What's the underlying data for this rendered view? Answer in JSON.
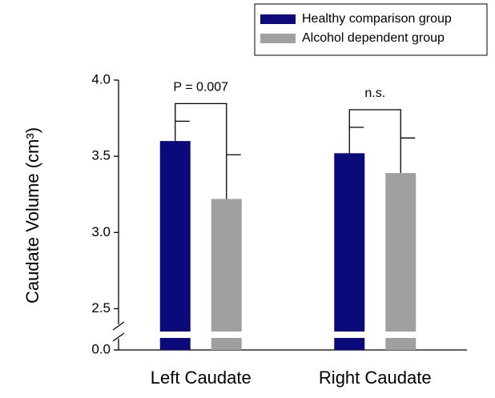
{
  "chart_data": {
    "type": "bar",
    "y_label": "Caudate Volume (cm³)",
    "categories": [
      "Left Caudate",
      "Right Caudate"
    ],
    "series": [
      {
        "name": "Healthy comparison group",
        "color": "#0a0a7a",
        "values": [
          3.6,
          3.52
        ],
        "errors": [
          0.13,
          0.17
        ]
      },
      {
        "name": "Alcohol dependent group",
        "color": "#a0a0a0",
        "values": [
          3.22,
          3.39
        ],
        "errors": [
          0.29,
          0.23
        ]
      }
    ],
    "annotations": [
      "P = 0.007",
      "n.s."
    ],
    "ylim": [
      0,
      4.0
    ],
    "y_break": [
      0.1,
      2.35
    ],
    "yticks": [
      {
        "value": 0,
        "label": "0.0"
      },
      {
        "value": 2.5,
        "label": "2.5"
      },
      {
        "value": 3.0,
        "label": "3.0"
      },
      {
        "value": 3.5,
        "label": "3.5"
      },
      {
        "value": 4.0,
        "label": "4.0"
      }
    ],
    "legend": "top-right",
    "grid": false
  }
}
